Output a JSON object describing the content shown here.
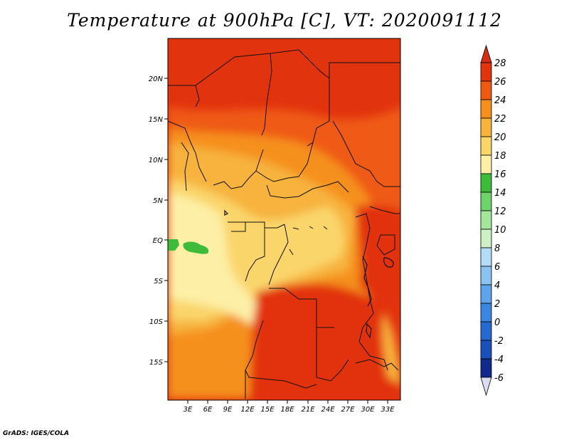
{
  "title": "Temperature at 900hPa [C], VT: 2020091112",
  "credit": "GrADS: IGES/COLA",
  "map": {
    "region": "Central Africa",
    "lat_labels": [
      "20N",
      "15N",
      "10N",
      "5N",
      "EQ",
      "5S",
      "10S",
      "15S"
    ],
    "lon_labels": [
      "3E",
      "6E",
      "9E",
      "12E",
      "15E",
      "18E",
      "21E",
      "24E",
      "27E",
      "30E",
      "33E"
    ]
  },
  "colorbar": {
    "labels": [
      "28",
      "26",
      "24",
      "22",
      "20",
      "18",
      "16",
      "14",
      "12",
      "10",
      "8",
      "6",
      "4",
      "2",
      "0",
      "-2",
      "-4",
      "-6"
    ],
    "colors": {
      "top": "#d62c14",
      "gt28": "#d62c14",
      "26_28": "#e2330f",
      "24_26": "#ef5a13",
      "22_24": "#f5901c",
      "20_22": "#f7b33c",
      "18_20": "#fad56a",
      "16_18": "#fdefa6",
      "14_16": "#3fbb3c",
      "12_14": "#6ed36a",
      "10_12": "#a4e69c",
      "8_10": "#cbf1c4",
      "6_8": "#b4dcf6",
      "4_6": "#8ac3f0",
      "2_4": "#5ea4ea",
      "0_2": "#3b86e0",
      "m2_0": "#2769d0",
      "m4_m2": "#1b4fba",
      "m6_m4": "#102a8c",
      "lt_m6": "#dcdcf0"
    }
  }
}
